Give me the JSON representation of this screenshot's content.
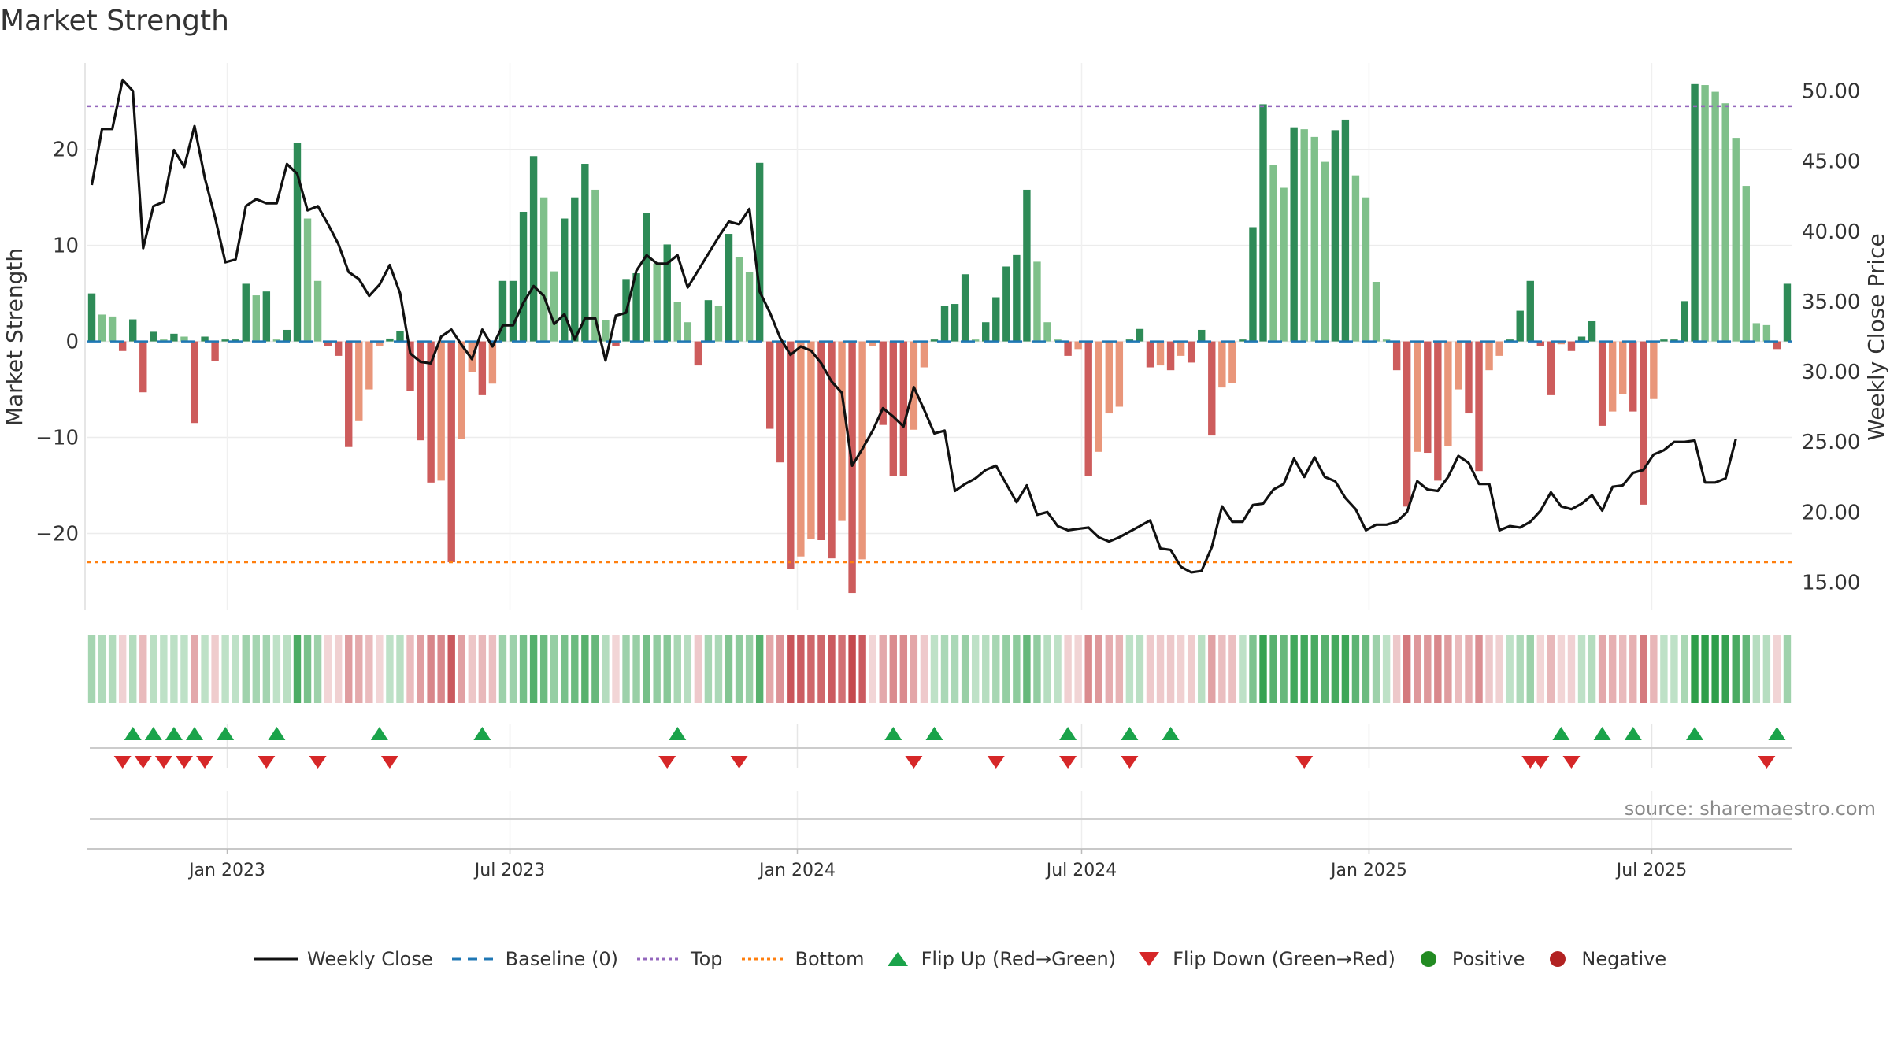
{
  "chart_data": {
    "type": "bar+line",
    "title": "Market Strength",
    "ylabel_left": "Market Strength",
    "ylabel_right": "Weekly Close Price",
    "source": "source: sharemaestro.com",
    "left_axis": {
      "min": -28,
      "max": 29,
      "ticks": [
        -20,
        -10,
        0,
        10,
        20
      ]
    },
    "right_axis": {
      "min": 13,
      "max": 52,
      "ticks": [
        "15.00",
        "20.00",
        "25.00",
        "30.00",
        "35.00",
        "40.00",
        "45.00",
        "50.00"
      ]
    },
    "top_level": 24.5,
    "bottom_level": -23,
    "x_axis": {
      "start": "2022-10-03",
      "end": "2025-09-29",
      "ticks": [
        {
          "date": "2023-01-01",
          "label": "Jan 2023"
        },
        {
          "date": "2023-07-01",
          "label": "Jul 2023"
        },
        {
          "date": "2024-01-01",
          "label": "Jan 2024"
        },
        {
          "date": "2024-07-01",
          "label": "Jul 2024"
        },
        {
          "date": "2025-01-01",
          "label": "Jan 2025"
        },
        {
          "date": "2025-07-01",
          "label": "Jul 2025"
        }
      ]
    },
    "strength": [
      5,
      2.8,
      2.6,
      -1,
      2.3,
      -5.3,
      1,
      0.2,
      0.8,
      0.5,
      -8.5,
      0.5,
      -2,
      0.2,
      0.2,
      6,
      4.8,
      5.2,
      0.2,
      1.2,
      20.7,
      12.8,
      6.3,
      -0.5,
      -1.5,
      -11,
      -8.3,
      -5,
      -0.5,
      0.3,
      1.1,
      -5.2,
      -10.3,
      -14.7,
      -14.5,
      -23,
      -10.2,
      -3.2,
      -5.6,
      -4.4,
      6.3,
      6.3,
      13.5,
      19.3,
      15,
      7.3,
      12.8,
      15,
      18.5,
      15.8,
      2.2,
      -0.5,
      6.5,
      7.1,
      13.4,
      8.1,
      10.1,
      4.1,
      2,
      -2.5,
      4.3,
      3.7,
      11.2,
      8.8,
      7.2,
      18.6,
      -9.1,
      -12.6,
      -23.7,
      -22.4,
      -20.6,
      -20.7,
      -22.6,
      -18.7,
      -26.2,
      -22.7,
      -0.5,
      -8.7,
      -14,
      -14,
      -9.2,
      -2.7,
      0.2,
      3.7,
      3.9,
      7,
      0.2,
      2,
      4.6,
      7.8,
      9,
      15.8,
      8.3,
      2,
      0.2,
      -1.5,
      -0.8,
      -14,
      -11.5,
      -7.5,
      -6.8,
      0.2,
      1.3,
      -2.7,
      -2.5,
      -3,
      -1.5,
      -2.2,
      1.2,
      -9.8,
      -4.8,
      -4.3,
      0.2,
      11.9,
      24.7,
      18.4,
      16,
      22.3,
      22.1,
      21.3,
      18.7,
      22,
      23.1,
      17.3,
      15,
      6.2,
      0.2,
      -3,
      -17.2,
      -11.5,
      -11.6,
      -14.5,
      -10.9,
      -5,
      -7.5,
      -13.5,
      -3,
      -1.5,
      0.2,
      3.2,
      6.3,
      -0.5,
      -5.6,
      -0.3,
      -1,
      0.5,
      2.1,
      -8.8,
      -7.3,
      -5.5,
      -7.3,
      -17,
      -6,
      0.2,
      0.2,
      4.2,
      26.8,
      26.7,
      26,
      24.8,
      21.2,
      16.2,
      1.9,
      1.7,
      -0.8,
      6
    ],
    "weekly_close": [
      43.3,
      47.3,
      47.3,
      50.8,
      50,
      38.8,
      41.8,
      42.1,
      45.8,
      44.6,
      47.5,
      43.8,
      41,
      37.8,
      38,
      41.8,
      42.3,
      42,
      42,
      44.8,
      44.1,
      41.5,
      41.8,
      40.5,
      39.1,
      37.1,
      36.6,
      35.4,
      36.2,
      37.6,
      35.6,
      31.3,
      30.7,
      30.6,
      32.5,
      33,
      31.9,
      30.9,
      33,
      31.8,
      33.3,
      33.3,
      34.9,
      36.1,
      35.4,
      33.4,
      34.1,
      32.3,
      33.8,
      33.8,
      30.8,
      34,
      34.2,
      37.2,
      38.3,
      37.7,
      37.7,
      38.3,
      36,
      37.2,
      38.4,
      39.6,
      40.7,
      40.5,
      41.6,
      35.7,
      34.2,
      32.4,
      31.2,
      31.8,
      31.5,
      30.6,
      29.3,
      28.5,
      23.3,
      24.5,
      25.8,
      27.4,
      26.8,
      26.1,
      28.9,
      27.3,
      25.6,
      25.8,
      21.5,
      22,
      22.4,
      23,
      23.3,
      22,
      20.7,
      21.9,
      19.8,
      20,
      19,
      18.7,
      18.8,
      18.9,
      18.2,
      17.9,
      18.2,
      18.6,
      19,
      19.4,
      17.4,
      17.3,
      16.1,
      15.7,
      15.8,
      17.5,
      20.4,
      19.3,
      19.3,
      20.5,
      20.6,
      21.6,
      22,
      23.8,
      22.5,
      23.9,
      22.5,
      22.2,
      21,
      20.2,
      18.7,
      19.1,
      19.1,
      19.3,
      20,
      22.2,
      21.6,
      21.5,
      22.5,
      24,
      23.5,
      22,
      22,
      18.7,
      19,
      18.9,
      19.3,
      20.1,
      21.4,
      20.4,
      20.2,
      20.6,
      21.2,
      20.1,
      21.8,
      21.9,
      22.8,
      23,
      24.1,
      24.4,
      25,
      25,
      25.1,
      22.1,
      22.1,
      22.4,
      25.2
    ],
    "flip_up_weeks": [
      4,
      6,
      8,
      10,
      13,
      18,
      28,
      38,
      57,
      78,
      82,
      95,
      101,
      105,
      143,
      147,
      150,
      156,
      164
    ],
    "flip_down_weeks": [
      3,
      5,
      7,
      9,
      11,
      17,
      22,
      29,
      56,
      63,
      80,
      88,
      95,
      101,
      118,
      140,
      141,
      144,
      163
    ],
    "legend": [
      "Weekly Close",
      "Baseline (0)",
      "Top",
      "Bottom",
      "Flip Up (Red→Green)",
      "Flip Down (Green→Red)",
      "Positive",
      "Negative"
    ],
    "colors": {
      "pos_dark": "#2e8b57",
      "pos_light": "#7fc08a",
      "neg_dark": "#cd5c5c",
      "neg_light": "#e9967a",
      "line": "#111111",
      "baseline": "#1f77b4",
      "top": "#9467bd",
      "bottom": "#ff7f0e",
      "flip_up": "#1aa34a",
      "flip_down": "#d62728",
      "positive_dot": "#228b22",
      "negative_dot": "#b22222"
    }
  }
}
